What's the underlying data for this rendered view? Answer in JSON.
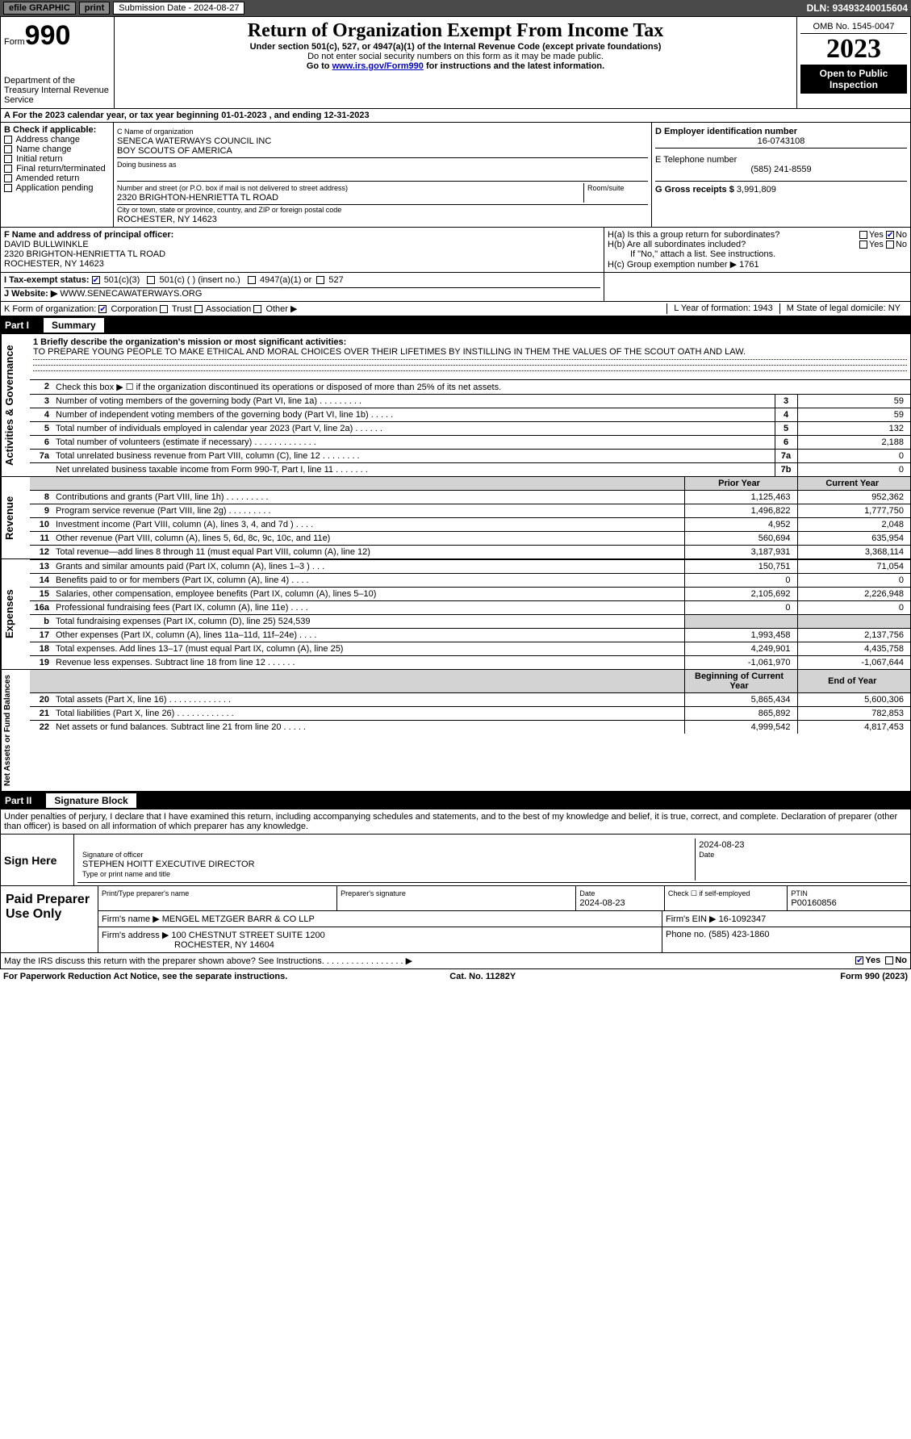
{
  "topbar": {
    "efile": "efile GRAPHIC",
    "print": "print",
    "subdate_label": "Submission Date - 2024-08-27",
    "dln": "DLN: 93493240015604"
  },
  "header": {
    "form_word": "Form",
    "form_num": "990",
    "dept": "Department of the Treasury\nInternal Revenue Service",
    "title": "Return of Organization Exempt From Income Tax",
    "sub1": "Under section 501(c), 527, or 4947(a)(1) of the Internal Revenue Code (except private foundations)",
    "sub2": "Do not enter social security numbers on this form as it may be made public.",
    "sub3_pre": "Go to ",
    "sub3_link": "www.irs.gov/Form990",
    "sub3_post": " for instructions and the latest information.",
    "omb": "OMB No. 1545-0047",
    "year": "2023",
    "inspection": "Open to Public Inspection"
  },
  "line_a": "A For the 2023 calendar year, or tax year beginning 01-01-2023   , and ending 12-31-2023",
  "box_b": {
    "label": "B Check if applicable:",
    "opts": [
      "Address change",
      "Name change",
      "Initial return",
      "Final return/terminated",
      "Amended return",
      "Application pending"
    ]
  },
  "box_c": {
    "name_label": "C Name of organization",
    "name1": "SENECA WATERWAYS COUNCIL INC",
    "name2": "BOY SCOUTS OF AMERICA",
    "dba_label": "Doing business as",
    "street_label": "Number and street (or P.O. box if mail is not delivered to street address)",
    "room_label": "Room/suite",
    "street": "2320 BRIGHTON-HENRIETTA TL ROAD",
    "city_label": "City or town, state or province, country, and ZIP or foreign postal code",
    "city": "ROCHESTER, NY  14623"
  },
  "box_d": {
    "label": "D Employer identification number",
    "val": "16-0743108"
  },
  "box_e": {
    "label": "E Telephone number",
    "val": "(585) 241-8559"
  },
  "box_g": {
    "label": "G Gross receipts $",
    "val": "3,991,809"
  },
  "box_f": {
    "label": "F  Name and address of principal officer:",
    "name": "DAVID BULLWINKLE",
    "addr1": "2320 BRIGHTON-HENRIETTA TL ROAD",
    "addr2": "ROCHESTER, NY  14623"
  },
  "box_h": {
    "a": "H(a)  Is this a group return for subordinates?",
    "b": "H(b)  Are all subordinates included?",
    "b_note": "If \"No,\" attach a list. See instructions.",
    "c_label": "H(c)  Group exemption number ▶",
    "c_val": "1761",
    "yes": "Yes",
    "no": "No"
  },
  "box_i": {
    "label": "I   Tax-exempt status:",
    "c3": "501(c)(3)",
    "c_insert": "501(c) (  ) (insert no.)",
    "a1": "4947(a)(1) or",
    "s527": "527"
  },
  "box_j": {
    "label": "J   Website: ▶",
    "val": "WWW.SENECAWATERWAYS.ORG"
  },
  "box_k": {
    "label": "K Form of organization:",
    "corp": "Corporation",
    "trust": "Trust",
    "assoc": "Association",
    "other": "Other ▶"
  },
  "box_l": {
    "label": "L Year of formation:",
    "val": "1943"
  },
  "box_m": {
    "label": "M State of legal domicile:",
    "val": "NY"
  },
  "part1": {
    "num": "Part I",
    "title": "Summary"
  },
  "summary": {
    "side_gov": "Activities & Governance",
    "side_rev": "Revenue",
    "side_exp": "Expenses",
    "side_net": "Net Assets or Fund Balances",
    "mission_label": "1  Briefly describe the organization's mission or most significant activities:",
    "mission": "TO PREPARE YOUNG PEOPLE TO MAKE ETHICAL AND MORAL CHOICES OVER THEIR LIFETIMES BY INSTILLING IN THEM THE VALUES OF THE SCOUT OATH AND LAW.",
    "l2": "Check this box ▶ ☐ if the organization discontinued its operations or disposed of more than 25% of its net assets.",
    "rows_gov": [
      {
        "n": "3",
        "t": "Number of voting members of the governing body (Part VI, line 1a)  .   .   .   .   .   .   .   .   .",
        "ln": "3",
        "v": "59"
      },
      {
        "n": "4",
        "t": "Number of independent voting members of the governing body (Part VI, line 1b)  .   .   .   .   .",
        "ln": "4",
        "v": "59"
      },
      {
        "n": "5",
        "t": "Total number of individuals employed in calendar year 2023 (Part V, line 2a)  .   .   .   .   .   .",
        "ln": "5",
        "v": "132"
      },
      {
        "n": "6",
        "t": "Total number of volunteers (estimate if necessary)  .   .   .   .   .   .   .   .   .   .   .   .   .",
        "ln": "6",
        "v": "2,188"
      },
      {
        "n": "7a",
        "t": "Total unrelated business revenue from Part VIII, column (C), line 12  .   .   .   .   .   .   .   .",
        "ln": "7a",
        "v": "0"
      },
      {
        "n": "",
        "t": "Net unrelated business taxable income from Form 990-T, Part I, line 11  .   .   .   .   .   .   .",
        "ln": "7b",
        "v": "0"
      }
    ],
    "hdr_prior": "Prior Year",
    "hdr_curr": "Current Year",
    "rows_rev": [
      {
        "n": "8",
        "t": "Contributions and grants (Part VIII, line 1h)  .   .   .   .   .   .   .   .   .",
        "p": "1,125,463",
        "c": "952,362"
      },
      {
        "n": "9",
        "t": "Program service revenue (Part VIII, line 2g)  .   .   .   .   .   .   .   .   .",
        "p": "1,496,822",
        "c": "1,777,750"
      },
      {
        "n": "10",
        "t": "Investment income (Part VIII, column (A), lines 3, 4, and 7d )  .   .   .   .",
        "p": "4,952",
        "c": "2,048"
      },
      {
        "n": "11",
        "t": "Other revenue (Part VIII, column (A), lines 5, 6d, 8c, 9c, 10c, and 11e)",
        "p": "560,694",
        "c": "635,954"
      },
      {
        "n": "12",
        "t": "Total revenue—add lines 8 through 11 (must equal Part VIII, column (A), line 12)",
        "p": "3,187,931",
        "c": "3,368,114"
      }
    ],
    "rows_exp": [
      {
        "n": "13",
        "t": "Grants and similar amounts paid (Part IX, column (A), lines 1–3 )  .   .   .",
        "p": "150,751",
        "c": "71,054"
      },
      {
        "n": "14",
        "t": "Benefits paid to or for members (Part IX, column (A), line 4)  .   .   .   .",
        "p": "0",
        "c": "0"
      },
      {
        "n": "15",
        "t": "Salaries, other compensation, employee benefits (Part IX, column (A), lines 5–10)",
        "p": "2,105,692",
        "c": "2,226,948"
      },
      {
        "n": "16a",
        "t": "Professional fundraising fees (Part IX, column (A), line 11e)  .   .   .   .",
        "p": "0",
        "c": "0"
      },
      {
        "n": "b",
        "t": "Total fundraising expenses (Part IX, column (D), line 25) 524,539",
        "p": "",
        "c": "",
        "grey": true
      },
      {
        "n": "17",
        "t": "Other expenses (Part IX, column (A), lines 11a–11d, 11f–24e)  .   .   .   .",
        "p": "1,993,458",
        "c": "2,137,756"
      },
      {
        "n": "18",
        "t": "Total expenses. Add lines 13–17 (must equal Part IX, column (A), line 25)",
        "p": "4,249,901",
        "c": "4,435,758"
      },
      {
        "n": "19",
        "t": "Revenue less expenses. Subtract line 18 from line 12  .   .   .   .   .   .",
        "p": "-1,061,970",
        "c": "-1,067,644"
      }
    ],
    "hdr_beg": "Beginning of Current Year",
    "hdr_end": "End of Year",
    "rows_net": [
      {
        "n": "20",
        "t": "Total assets (Part X, line 16)  .   .   .   .   .   .   .   .   .   .   .   .   .",
        "p": "5,865,434",
        "c": "5,600,306"
      },
      {
        "n": "21",
        "t": "Total liabilities (Part X, line 26)  .   .   .   .   .   .   .   .   .   .   .   .",
        "p": "865,892",
        "c": "782,853"
      },
      {
        "n": "22",
        "t": "Net assets or fund balances. Subtract line 21 from line 20  .   .   .   .   .",
        "p": "4,999,542",
        "c": "4,817,453"
      }
    ]
  },
  "part2": {
    "num": "Part II",
    "title": "Signature Block"
  },
  "sig": {
    "decl": "Under penalties of perjury, I declare that I have examined this return, including accompanying schedules and statements, and to the best of my knowledge and belief, it is true, correct, and complete. Declaration of preparer (other than officer) is based on all information of which preparer has any knowledge.",
    "sign_here": "Sign Here",
    "sig_officer": "Signature of officer",
    "officer_name": "STEPHEN HOITT EXECUTIVE DIRECTOR",
    "type_name": "Type or print name and title",
    "sig_date": "2024-08-23",
    "date_label": "Date",
    "paid": "Paid Preparer Use Only",
    "prep_name_label": "Print/Type preparer's name",
    "prep_sig_label": "Preparer's signature",
    "prep_date_label": "Date",
    "prep_date": "2024-08-23",
    "check_self": "Check ☐ if self-employed",
    "ptin_label": "PTIN",
    "ptin": "P00160856",
    "firm_name_label": "Firm's name    ▶",
    "firm_name": "MENGEL METZGER BARR & CO LLP",
    "firm_ein_label": "Firm's EIN ▶",
    "firm_ein": "16-1092347",
    "firm_addr_label": "Firm's address ▶",
    "firm_addr1": "100 CHESTNUT STREET SUITE 1200",
    "firm_addr2": "ROCHESTER, NY  14604",
    "phone_label": "Phone no.",
    "phone": "(585) 423-1860",
    "irs_q": "May the IRS discuss this return with the preparer shown above? See Instructions.  .   .   .   .   .   .   .   .   .   .   .   .   .   .   .   . ▶",
    "yes": "Yes",
    "no": "No"
  },
  "footer": {
    "left": "For Paperwork Reduction Act Notice, see the separate instructions.",
    "mid": "Cat. No. 11282Y",
    "right": "Form 990 (2023)"
  }
}
